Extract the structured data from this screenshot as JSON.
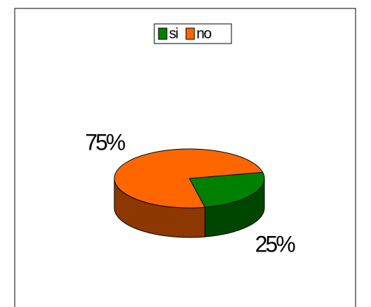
{
  "chart_data": {
    "type": "pie",
    "categories": [
      "si",
      "no"
    ],
    "values": [
      25,
      75
    ],
    "value_labels": [
      "25%",
      "75%"
    ],
    "colors": [
      "#008000",
      "#ff6600"
    ],
    "legend": "top"
  }
}
